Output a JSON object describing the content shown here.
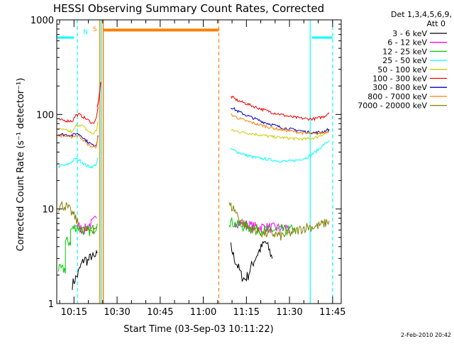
{
  "chart_data": {
    "type": "line",
    "title": "HESSI Observing Summary Count Rates, Corrected",
    "xlabel": "Start Time (03-Sep-03 10:11:22)",
    "ylabel": "Corrected Count Rate (s⁻¹ detector⁻¹)",
    "timestamp": "2-Feb-2010 20:42",
    "y_scale": "log",
    "ylim": [
      1,
      1000
    ],
    "xlim": [
      10.15,
      11.8
    ],
    "x_ticks": [
      "10:15",
      "10:30",
      "10:45",
      "11:00",
      "11:15",
      "11:30",
      "11:45"
    ],
    "y_ticks": [
      "1",
      "10",
      "100",
      "1000"
    ],
    "legend_header": [
      "Det 1,3,4,5,6,9,",
      "Att 0"
    ],
    "legend_position": "right",
    "grid": false,
    "series": [
      {
        "name": "3 - 6 keV",
        "color": "#000000",
        "segments": [
          {
            "x": [
              10.24,
              10.27,
              10.29,
              10.31,
              10.33,
              10.35,
              10.37,
              10.385
            ],
            "y": [
              1.6,
              2.0,
              2.5,
              3.0,
              2.8,
              3.2,
              3.0,
              3.4
            ]
          },
          {
            "x": [
              11.16,
              11.18,
              11.2,
              11.22,
              11.24,
              11.26,
              11.28,
              11.3,
              11.32,
              11.34,
              11.36,
              11.38,
              11.4
            ],
            "y": [
              4.0,
              3.0,
              2.5,
              2.0,
              1.8,
              2.0,
              2.5,
              3.0,
              3.5,
              4.0,
              4.5,
              3.8,
              3.0
            ]
          }
        ]
      },
      {
        "name": "6 - 12 keV",
        "color": "#ff00ff",
        "segments": [
          {
            "x": [
              10.26,
              10.28,
              10.3,
              10.32,
              10.34,
              10.36,
              10.38
            ],
            "y": [
              7.0,
              6.5,
              6.0,
              6.3,
              6.8,
              7.2,
              8.0
            ]
          },
          {
            "x": [
              11.18,
              11.22,
              11.26,
              11.3,
              11.34,
              11.38,
              11.42,
              11.46,
              11.5
            ],
            "y": [
              7.5,
              7.0,
              6.8,
              6.5,
              6.5,
              6.4,
              6.3,
              6.3,
              6.5
            ]
          }
        ]
      },
      {
        "name": "12 - 25 keV",
        "color": "#00cc00",
        "segments": [
          {
            "x": [
              10.16,
              10.2,
              10.2,
              10.23,
              10.23,
              10.26,
              10.28,
              10.3,
              10.33,
              10.35,
              10.37,
              10.385
            ],
            "y": [
              2.3,
              2.3,
              4.5,
              4.5,
              6.0,
              6.5,
              6.3,
              6.0,
              5.8,
              6.0,
              6.3,
              7.0
            ]
          },
          {
            "x": [
              11.15,
              11.2,
              11.25,
              11.3,
              11.35,
              11.4,
              11.45,
              11.5,
              11.53
            ],
            "y": [
              7.5,
              6.8,
              6.5,
              6.2,
              6.0,
              6.0,
              6.0,
              6.0,
              6.2
            ]
          }
        ]
      },
      {
        "name": "25 - 50 keV",
        "color": "#00ffff",
        "segments": [
          {
            "x": [
              10.16,
              10.18,
              10.2,
              10.22,
              10.24,
              10.26,
              10.28,
              10.3,
              10.32,
              10.34,
              10.36,
              10.38,
              10.39
            ],
            "y": [
              28,
              29,
              29,
              30,
              32,
              34,
              33,
              31,
              29,
              28,
              28,
              30,
              35
            ]
          },
          {
            "x": [
              11.16,
              11.2,
              11.25,
              11.3,
              11.35,
              11.4,
              11.45,
              11.5,
              11.55,
              11.6,
              11.65,
              11.7,
              11.73
            ],
            "y": [
              43,
              40,
              37,
              35,
              34,
              33,
              32,
              32,
              33,
              35,
              40,
              48,
              53
            ]
          }
        ]
      },
      {
        "name": "50 - 100 keV",
        "color": "#cccc00",
        "segments": [
          {
            "x": [
              10.16,
              10.2,
              10.24,
              10.26,
              10.28,
              10.3,
              10.32,
              10.34,
              10.36,
              10.38,
              10.39
            ],
            "y": [
              70,
              68,
              65,
              75,
              78,
              75,
              70,
              65,
              62,
              68,
              85
            ]
          },
          {
            "x": [
              11.16,
              11.2,
              11.25,
              11.3,
              11.35,
              11.4,
              11.45,
              11.5,
              11.55,
              11.6,
              11.65,
              11.7,
              11.73
            ],
            "y": [
              68,
              66,
              64,
              62,
              60,
              58,
              57,
              56,
              55,
              55,
              57,
              62,
              66
            ]
          }
        ]
      },
      {
        "name": "100 - 300 keV",
        "color": "#ee0000",
        "segments": [
          {
            "x": [
              10.16,
              10.2,
              10.24,
              10.26,
              10.28,
              10.3,
              10.32,
              10.34,
              10.36,
              10.38,
              10.39
            ],
            "y": [
              88,
              86,
              85,
              98,
              100,
              95,
              90,
              85,
              80,
              92,
              120
            ]
          },
          {
            "x": [
              11.16,
              11.2,
              11.25,
              11.3,
              11.35,
              11.4,
              11.45,
              11.5,
              11.55,
              11.6,
              11.65,
              11.7,
              11.73
            ],
            "y": [
              155,
              140,
              130,
              120,
              112,
              105,
              100,
              95,
              92,
              90,
              90,
              95,
              105
            ]
          }
        ]
      },
      {
        "name": "300 - 800 keV",
        "color": "#0000cc",
        "segments": [
          {
            "x": [
              10.16,
              10.2,
              10.24,
              10.26,
              10.28,
              10.3,
              10.32,
              10.34,
              10.36,
              10.38,
              10.39
            ],
            "y": [
              62,
              61,
              60,
              63,
              62,
              58,
              53,
              50,
              47,
              48,
              60
            ]
          },
          {
            "x": [
              11.16,
              11.2,
              11.25,
              11.3,
              11.35,
              11.4,
              11.45,
              11.5,
              11.55,
              11.6,
              11.65,
              11.7,
              11.73
            ],
            "y": [
              120,
              108,
              98,
              90,
              83,
              78,
              73,
              70,
              68,
              65,
              64,
              66,
              70
            ]
          }
        ]
      },
      {
        "name": "800 - 7000 keV",
        "color": "#ff8000",
        "segments": [
          {
            "x": [
              10.16,
              10.2,
              10.24,
              10.26,
              10.28,
              10.3,
              10.32,
              10.34,
              10.36,
              10.38,
              10.39
            ],
            "y": [
              60,
              59,
              58,
              60,
              59,
              55,
              50,
              47,
              45,
              46,
              58
            ]
          },
          {
            "x": [
              11.16,
              11.2,
              11.25,
              11.3,
              11.35,
              11.4,
              11.45,
              11.5,
              11.55,
              11.6,
              11.65,
              11.7,
              11.73
            ],
            "y": [
              100,
              92,
              85,
              80,
              76,
              72,
              69,
              67,
              65,
              63,
              62,
              64,
              67
            ]
          }
        ]
      },
      {
        "name": "7000 - 20000 keV",
        "color": "#808000",
        "segments": [
          {
            "x": [
              10.16,
              10.18,
              10.2,
              10.22,
              10.24,
              10.26,
              10.28,
              10.3,
              10.32,
              10.34,
              10.36,
              10.38
            ],
            "y": [
              10.5,
              11.0,
              10.8,
              10.0,
              9.0,
              8.0,
              6.5,
              6.0,
              5.8,
              6.0,
              6.2,
              6.5
            ]
          },
          {
            "x": [
              11.15,
              11.18,
              11.2,
              11.22,
              11.25,
              11.3,
              11.35,
              11.4,
              11.45,
              11.5,
              11.55,
              11.6,
              11.65,
              11.7,
              11.73
            ],
            "y": [
              11.0,
              10.0,
              8.5,
              7.5,
              6.5,
              6.0,
              5.5,
              5.5,
              5.2,
              5.5,
              6.0,
              6.5,
              6.5,
              7.0,
              7.5
            ]
          }
        ]
      }
    ],
    "flare_rise": {
      "color": "#ee0000",
      "x": [
        10.385,
        10.39,
        10.395,
        10.4,
        10.405
      ],
      "y": [
        120,
        130,
        150,
        180,
        220
      ]
    },
    "annotations": {
      "night_label": "N",
      "saa_label": "S",
      "night_color": "#00ffff",
      "saa_color": "#ff8000",
      "night_bar_level": 650,
      "saa_bar_level": 780,
      "night_bars": [
        [
          10.15,
          10.25
        ],
        [
          11.63,
          11.75
        ]
      ],
      "saa_bar": [
        10.42,
        11.09
      ],
      "night_lines_dashed": [
        10.27,
        11.75
      ],
      "night_lines_solid": [
        10.41,
        11.62
      ],
      "saa_lines_solid": [
        10.4,
        10.42
      ],
      "saa_lines_dashed": [
        11.09
      ]
    }
  }
}
